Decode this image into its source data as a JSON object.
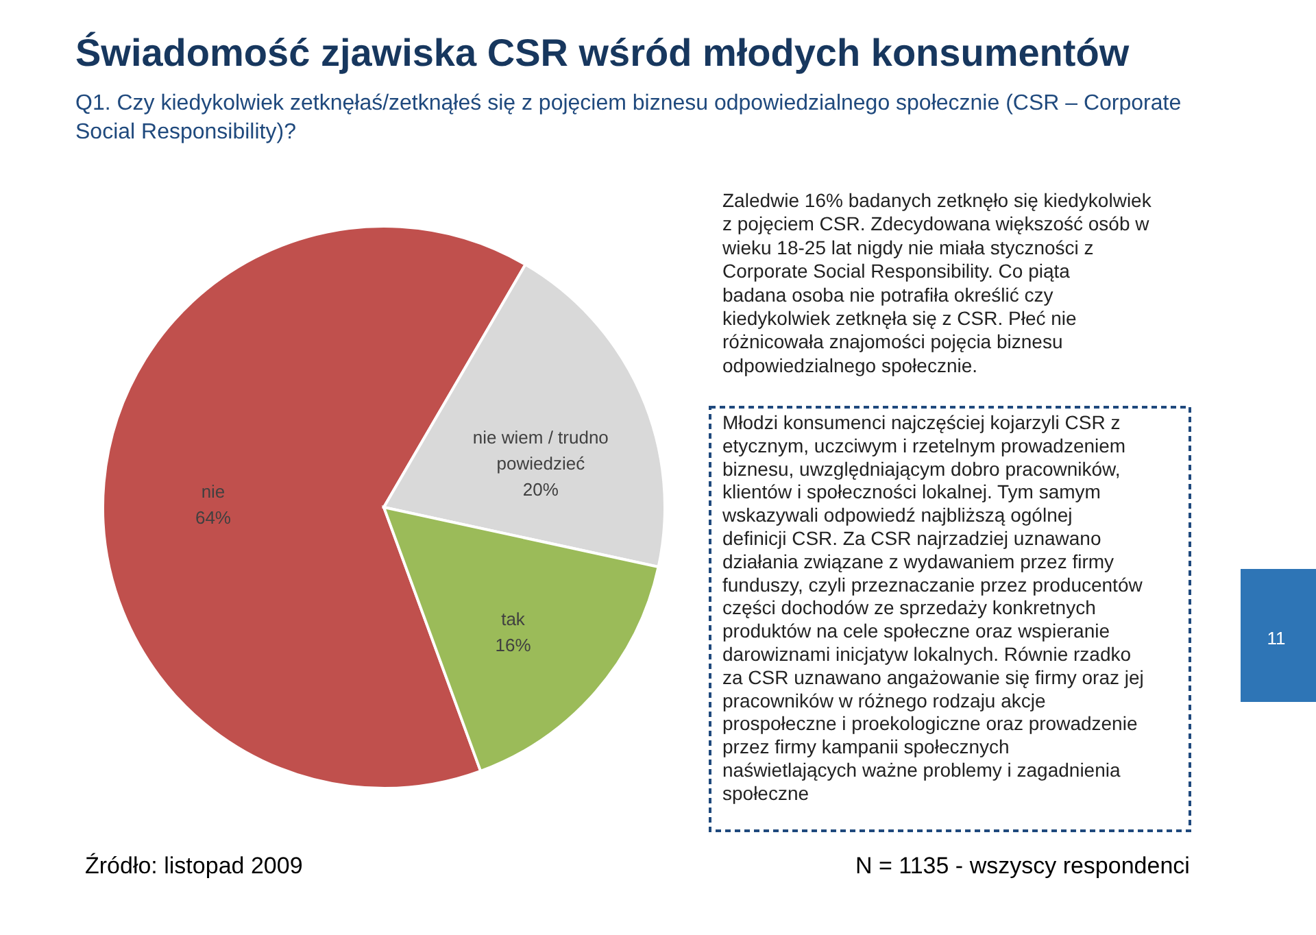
{
  "chart_data": {
    "type": "pie",
    "title": "Świadomość zjawiska CSR wśród młodych konsumentów",
    "subtitle": "Q1. Czy kiedykolwiek zetknęłaś/zetknąłeś się z pojęciem biznesu odpowiedzialnego społecznie (CSR – Corporate Social Responsibility)?",
    "categories": [
      "nie",
      "nie wiem / trudno powiedzieć",
      "tak"
    ],
    "values": [
      64,
      20,
      16
    ],
    "value_labels": [
      "64%",
      "20%",
      "16%"
    ],
    "colors": [
      "#c0504d",
      "#d9d9d9",
      "#9bbb59"
    ],
    "annotations": [
      "Zaledwie 16% badanych zetknęło się kiedykolwiek z pojęciem CSR. Zdecydowana większość osób w wieku 18-25 lat nigdy nie miała styczności z Corporate Social Responsibility. Co piąta badana osoba nie potrafiła określić czy kiedykolwiek zetknęła się z CSR. Płeć nie różnicowała znajomości pojęcia biznesu odpowiedzialnego społecznie.",
      "Młodzi konsumenci najczęściej kojarzyli CSR z etycznym, uczciwym i rzetelnym prowadzeniem biznesu, uwzględniającym dobro pracowników, klientów i społeczności lokalnej. Tym samym wskazywali odpowiedź najbliższą ogólnej definicji CSR. Za CSR najrzadziej uznawano działania związane z wydawaniem przez firmy funduszy, czyli przeznaczanie przez producentów części dochodów ze sprzedaży konkretnych produktów na cele społeczne oraz wspieranie darowiznami inicjatyw lokalnych. Równie rzadko za CSR uznawano angażowanie się firmy oraz jej pracowników w różnego rodzaju akcje prospołeczne i proekologiczne oraz prowadzenie przez firmy kampanii społecznych naświetlających ważne problemy i zagadnienia społeczne",
      "Źródło: listopad 2009",
      "N = 1135 - wszyscy respondenci",
      "11"
    ]
  }
}
